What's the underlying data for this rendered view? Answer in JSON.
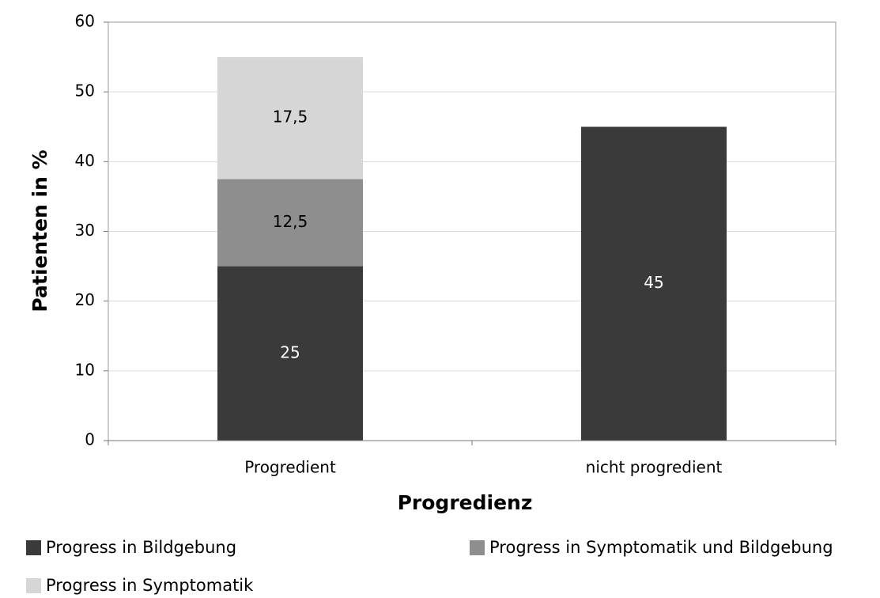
{
  "chart_data": {
    "type": "stacked_bar",
    "x_label": "Progredienz",
    "y_label": "Patienten in %",
    "categories": [
      "Progredient",
      "nicht progredient"
    ],
    "series": [
      {
        "name": "Progress in Bildgebung",
        "color": "#3a3a3a",
        "label_color": "#ffffff",
        "values": [
          25,
          45
        ]
      },
      {
        "name": "Progress in Symptomatik und Bildgebung",
        "color": "#8e8e8e",
        "label_color": "#000000",
        "values": [
          12.5,
          null
        ],
        "value_labels": [
          "12,5",
          null
        ]
      },
      {
        "name": "Progress in Symptomatik",
        "color": "#d6d6d6",
        "label_color": "#000000",
        "values": [
          17.5,
          null
        ],
        "value_labels": [
          "17,5",
          null
        ]
      }
    ],
    "ylim": [
      0,
      60
    ],
    "yticks": [
      0,
      10,
      20,
      30,
      40,
      50,
      60
    ],
    "grid": true
  }
}
